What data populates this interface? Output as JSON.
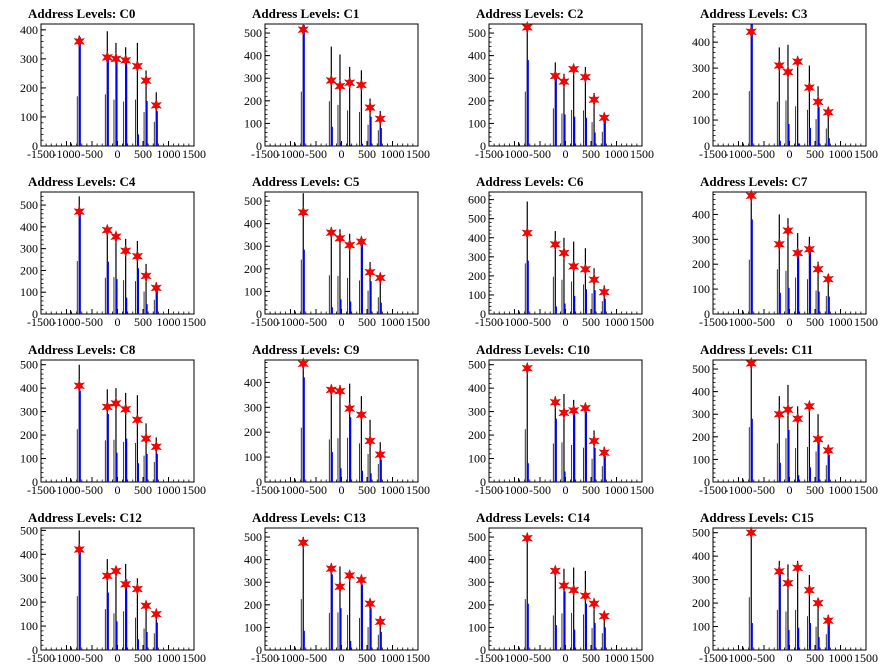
{
  "figure_title": "",
  "colors": {
    "histogram": "#000000",
    "selected": "#0000ff",
    "marker": "#ff0000"
  },
  "chart_data": [
    {
      "type": "histogram",
      "title": "Address Levels: C0",
      "xlim": [
        -1500,
        1500
      ],
      "ylim": [
        0,
        420
      ],
      "yticks": [
        0,
        100,
        200,
        300,
        400
      ],
      "xtick_labels": [
        "-1500",
        "-1000",
        "-500",
        "0",
        "500",
        "1000",
        "1500"
      ],
      "x": [
        -750,
        -200,
        -30,
        160,
        390,
        560,
        760
      ],
      "values": [
        380,
        395,
        355,
        340,
        355,
        260,
        185
      ],
      "selected_values": [
        375,
        310,
        300,
        295,
        40,
        155,
        120
      ],
      "markers": [
        360,
        305,
        300,
        295,
        275,
        225,
        140
      ]
    },
    {
      "type": "histogram",
      "title": "Address Levels: C1",
      "xlim": [
        -1500,
        1500
      ],
      "ylim": [
        0,
        540
      ],
      "yticks": [
        0,
        100,
        200,
        300,
        400,
        500
      ],
      "xtick_labels": [
        "-1500",
        "-1000",
        "-500",
        "0",
        "500",
        "1000",
        "1500"
      ],
      "x": [
        -750,
        -200,
        -30,
        160,
        390,
        560,
        760
      ],
      "values": [
        535,
        440,
        405,
        350,
        335,
        210,
        155
      ],
      "selected_values": [
        535,
        85,
        15,
        5,
        10,
        130,
        80
      ],
      "markers": [
        515,
        290,
        265,
        280,
        270,
        170,
        120
      ]
    },
    {
      "type": "histogram",
      "title": "Address Levels: C2",
      "xlim": [
        -1500,
        1500
      ],
      "ylim": [
        0,
        540
      ],
      "yticks": [
        0,
        100,
        200,
        300,
        400,
        500
      ],
      "xtick_labels": [
        "-1500",
        "-1000",
        "-500",
        "0",
        "500",
        "1000",
        "1500"
      ],
      "x": [
        -750,
        -200,
        -30,
        160,
        390,
        560,
        760
      ],
      "values": [
        535,
        370,
        320,
        355,
        350,
        235,
        140
      ],
      "selected_values": [
        380,
        300,
        140,
        130,
        125,
        60,
        120
      ],
      "markers": [
        525,
        310,
        285,
        340,
        305,
        205,
        125
      ]
    },
    {
      "type": "histogram",
      "title": "Address Levels: C3",
      "xlim": [
        -1500,
        1500
      ],
      "ylim": [
        0,
        470
      ],
      "yticks": [
        0,
        100,
        200,
        300,
        400
      ],
      "xtick_labels": [
        "-1500",
        "-1000",
        "-500",
        "0",
        "500",
        "1000",
        "1500"
      ],
      "x": [
        -750,
        -200,
        -30,
        160,
        390,
        560,
        760
      ],
      "values": [
        470,
        380,
        390,
        340,
        310,
        230,
        150
      ],
      "selected_values": [
        470,
        20,
        85,
        10,
        70,
        150,
        30
      ],
      "markers": [
        440,
        310,
        285,
        325,
        225,
        170,
        130
      ]
    },
    {
      "type": "histogram",
      "title": "Address Levels: C4",
      "xlim": [
        -1500,
        1500
      ],
      "ylim": [
        0,
        560
      ],
      "yticks": [
        0,
        100,
        200,
        300,
        400,
        500
      ],
      "xtick_labels": [
        "-1500",
        "-1000",
        "-500",
        "0",
        "500",
        "1000",
        "1500"
      ],
      "x": [
        -750,
        -200,
        -30,
        160,
        390,
        560,
        760
      ],
      "values": [
        540,
        370,
        375,
        345,
        335,
        230,
        145
      ],
      "selected_values": [
        470,
        240,
        160,
        75,
        210,
        45,
        120
      ],
      "markers": [
        470,
        385,
        355,
        290,
        265,
        175,
        120
      ]
    },
    {
      "type": "histogram",
      "title": "Address Levels: C5",
      "xlim": [
        -1500,
        1500
      ],
      "ylim": [
        0,
        540
      ],
      "yticks": [
        0,
        100,
        200,
        300,
        400,
        500
      ],
      "xtick_labels": [
        "-1500",
        "-1000",
        "-500",
        "0",
        "500",
        "1000",
        "1500"
      ],
      "x": [
        -750,
        -200,
        -30,
        160,
        390,
        560,
        760
      ],
      "values": [
        535,
        380,
        375,
        355,
        330,
        230,
        165
      ],
      "selected_values": [
        285,
        30,
        65,
        55,
        330,
        145,
        50
      ],
      "markers": [
        450,
        360,
        335,
        305,
        320,
        185,
        160
      ]
    },
    {
      "type": "histogram",
      "title": "Address Levels: C6",
      "xlim": [
        -1500,
        1500
      ],
      "ylim": [
        0,
        640
      ],
      "yticks": [
        0,
        100,
        200,
        300,
        400,
        500,
        600
      ],
      "xtick_labels": [
        "-1500",
        "-1000",
        "-500",
        "0",
        "500",
        "1000",
        "1500"
      ],
      "x": [
        -750,
        -200,
        -30,
        160,
        390,
        560,
        760
      ],
      "values": [
        590,
        435,
        400,
        380,
        345,
        240,
        150
      ],
      "selected_values": [
        280,
        40,
        55,
        95,
        130,
        125,
        80
      ],
      "markers": [
        425,
        365,
        320,
        250,
        235,
        180,
        115
      ]
    },
    {
      "type": "histogram",
      "title": "Address Levels: C7",
      "xlim": [
        -1500,
        1500
      ],
      "ylim": [
        0,
        490
      ],
      "yticks": [
        0,
        100,
        200,
        300,
        400
      ],
      "xtick_labels": [
        "-1500",
        "-1000",
        "-500",
        "0",
        "500",
        "1000",
        "1500"
      ],
      "x": [
        -750,
        -200,
        -30,
        160,
        390,
        560,
        760
      ],
      "values": [
        485,
        400,
        385,
        325,
        310,
        210,
        160
      ],
      "selected_values": [
        380,
        85,
        105,
        235,
        250,
        90,
        70
      ],
      "markers": [
        475,
        280,
        335,
        245,
        260,
        180,
        140
      ]
    },
    {
      "type": "histogram",
      "title": "Address Levels: C8",
      "xlim": [
        -1500,
        1500
      ],
      "ylim": [
        0,
        520
      ],
      "yticks": [
        0,
        100,
        200,
        300,
        400,
        500
      ],
      "xtick_labels": [
        "-1500",
        "-1000",
        "-500",
        "0",
        "500",
        "1000",
        "1500"
      ],
      "x": [
        -750,
        -200,
        -30,
        160,
        390,
        560,
        760
      ],
      "values": [
        500,
        395,
        400,
        380,
        370,
        250,
        190
      ],
      "selected_values": [
        390,
        290,
        125,
        185,
        80,
        120,
        120
      ],
      "markers": [
        410,
        320,
        335,
        310,
        265,
        185,
        150
      ]
    },
    {
      "type": "histogram",
      "title": "Address Levels: C9",
      "xlim": [
        -1500,
        1500
      ],
      "ylim": [
        0,
        490
      ],
      "yticks": [
        0,
        100,
        200,
        300,
        400
      ],
      "xtick_labels": [
        "-1500",
        "-1000",
        "-500",
        "0",
        "500",
        "1000",
        "1500"
      ],
      "x": [
        -750,
        -200,
        -30,
        160,
        390,
        560,
        760
      ],
      "values": [
        485,
        380,
        390,
        395,
        345,
        250,
        160
      ],
      "selected_values": [
        420,
        120,
        55,
        260,
        45,
        35,
        90
      ],
      "markers": [
        475,
        370,
        365,
        295,
        270,
        165,
        110
      ]
    },
    {
      "type": "histogram",
      "title": "Address Levels: C10",
      "xlim": [
        -1500,
        1500
      ],
      "ylim": [
        0,
        520
      ],
      "yticks": [
        0,
        100,
        200,
        300,
        400,
        500
      ],
      "xtick_labels": [
        "-1500",
        "-1000",
        "-500",
        "0",
        "500",
        "1000",
        "1500"
      ],
      "x": [
        -750,
        -200,
        -30,
        160,
        390,
        560,
        760
      ],
      "values": [
        500,
        365,
        375,
        350,
        325,
        220,
        150
      ],
      "selected_values": [
        80,
        270,
        45,
        300,
        300,
        145,
        110
      ],
      "markers": [
        485,
        340,
        295,
        305,
        315,
        175,
        125
      ]
    },
    {
      "type": "histogram",
      "title": "Address Levels: C11",
      "xlim": [
        -1500,
        1500
      ],
      "ylim": [
        0,
        540
      ],
      "yticks": [
        0,
        100,
        200,
        300,
        400,
        500
      ],
      "xtick_labels": [
        "-1500",
        "-1000",
        "-500",
        "0",
        "500",
        "1000",
        "1500"
      ],
      "x": [
        -750,
        -200,
        -30,
        160,
        390,
        560,
        760
      ],
      "values": [
        540,
        380,
        430,
        335,
        345,
        300,
        165
      ],
      "selected_values": [
        280,
        85,
        230,
        30,
        65,
        185,
        120
      ],
      "markers": [
        525,
        300,
        320,
        280,
        335,
        190,
        140
      ]
    },
    {
      "type": "histogram",
      "title": "Address Levels: C12",
      "xlim": [
        -1500,
        1500
      ],
      "ylim": [
        0,
        510
      ],
      "yticks": [
        0,
        100,
        200,
        300,
        400,
        500
      ],
      "xtick_labels": [
        "-1500",
        "-1000",
        "-500",
        "0",
        "500",
        "1000",
        "1500"
      ],
      "x": [
        -750,
        -200,
        -30,
        160,
        390,
        560,
        760
      ],
      "values": [
        500,
        380,
        340,
        360,
        300,
        200,
        155
      ],
      "selected_values": [
        430,
        240,
        120,
        295,
        45,
        75,
        115
      ],
      "markers": [
        420,
        310,
        330,
        275,
        255,
        185,
        150
      ]
    },
    {
      "type": "histogram",
      "title": "Address Levels: C13",
      "xlim": [
        -1500,
        1500
      ],
      "ylim": [
        0,
        540
      ],
      "yticks": [
        0,
        100,
        200,
        300,
        400,
        500
      ],
      "xtick_labels": [
        "-1500",
        "-1000",
        "-500",
        "0",
        "500",
        "1000",
        "1500"
      ],
      "x": [
        -750,
        -200,
        -30,
        160,
        390,
        560,
        760
      ],
      "values": [
        500,
        365,
        370,
        345,
        315,
        225,
        150
      ],
      "selected_values": [
        85,
        335,
        185,
        40,
        290,
        185,
        80
      ],
      "markers": [
        475,
        360,
        280,
        330,
        310,
        205,
        125
      ]
    },
    {
      "type": "histogram",
      "title": "Address Levels: C14",
      "xlim": [
        -1500,
        1500
      ],
      "ylim": [
        0,
        540
      ],
      "yticks": [
        0,
        100,
        200,
        300,
        400,
        500
      ],
      "xtick_labels": [
        "-1500",
        "-1000",
        "-500",
        "0",
        "500",
        "1000",
        "1500"
      ],
      "x": [
        -750,
        -200,
        -30,
        160,
        390,
        560,
        760
      ],
      "values": [
        500,
        340,
        360,
        365,
        350,
        215,
        165
      ],
      "selected_values": [
        205,
        110,
        260,
        90,
        205,
        120,
        100
      ],
      "markers": [
        495,
        350,
        285,
        265,
        240,
        205,
        150
      ]
    },
    {
      "type": "histogram",
      "title": "Address Levels: C15",
      "xlim": [
        -1500,
        1500
      ],
      "ylim": [
        0,
        520
      ],
      "yticks": [
        0,
        100,
        200,
        300,
        400,
        500
      ],
      "xtick_labels": [
        "-1500",
        "-1000",
        "-500",
        "0",
        "500",
        "1000",
        "1500"
      ],
      "x": [
        -750,
        -200,
        -30,
        160,
        390,
        560,
        760
      ],
      "values": [
        500,
        380,
        365,
        380,
        320,
        220,
        150
      ],
      "selected_values": [
        115,
        330,
        85,
        95,
        115,
        55,
        125
      ],
      "markers": [
        500,
        335,
        285,
        350,
        255,
        200,
        125
      ]
    }
  ]
}
